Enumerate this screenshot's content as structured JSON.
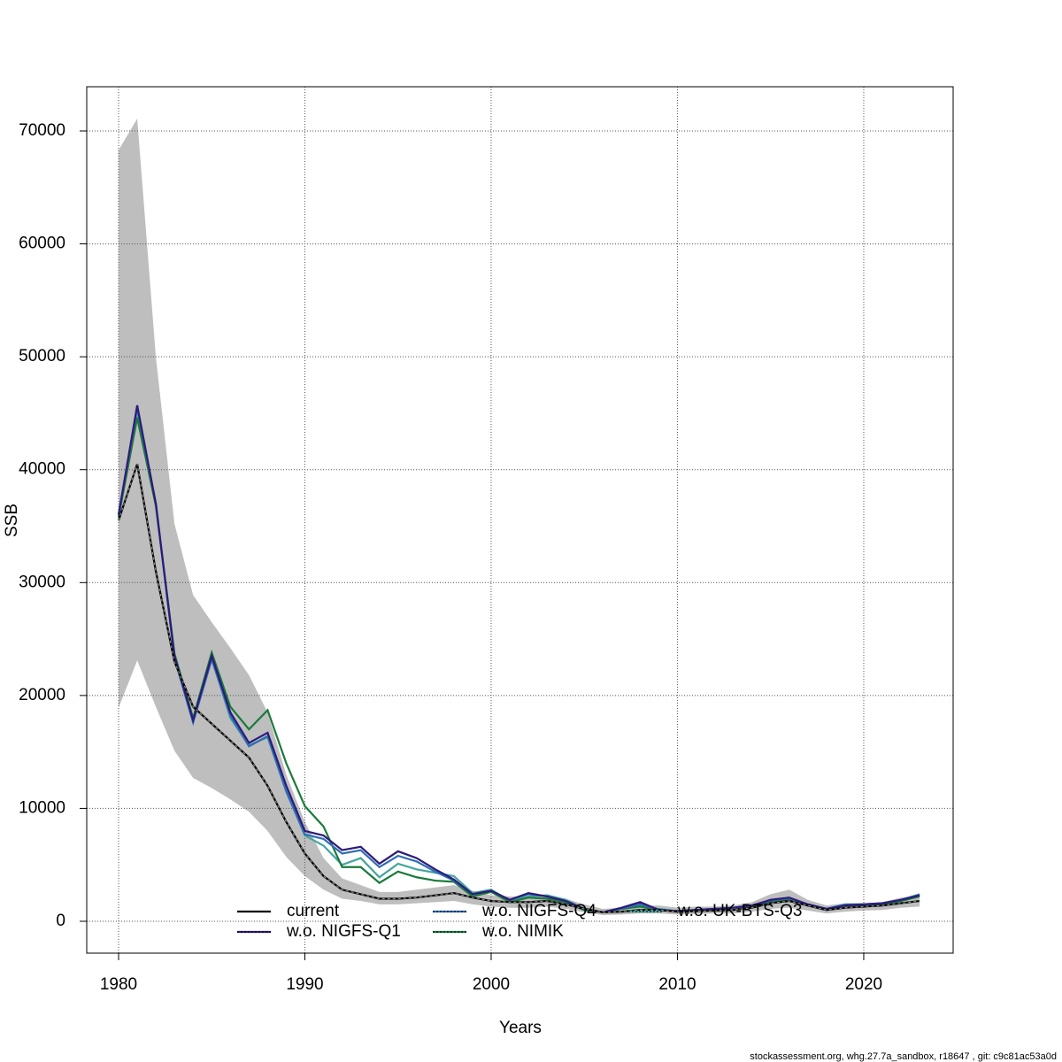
{
  "chart_data": {
    "type": "line",
    "xlabel": "Years",
    "ylabel": "SSB",
    "footer": "stockassessment.org, whg.27.7a_sandbox, r18647 , git: c9c81ac53a0d",
    "x": [
      1980,
      1981,
      1982,
      1983,
      1984,
      1985,
      1986,
      1987,
      1988,
      1989,
      1990,
      1991,
      1992,
      1993,
      1994,
      1995,
      1996,
      1997,
      1998,
      1999,
      2000,
      2001,
      2002,
      2003,
      2004,
      2005,
      2006,
      2007,
      2008,
      2009,
      2010,
      2011,
      2012,
      2013,
      2014,
      2015,
      2016,
      2017,
      2018,
      2019,
      2020,
      2021,
      2022,
      2023
    ],
    "band": {
      "color": "#bebebe",
      "upper": [
        68300,
        71100,
        50000,
        35200,
        28900,
        26500,
        24200,
        21800,
        18500,
        13000,
        8800,
        5600,
        3800,
        3200,
        2600,
        2600,
        2800,
        3000,
        3200,
        2700,
        2300,
        2200,
        2200,
        2300,
        2000,
        1500,
        1100,
        1200,
        1400,
        1400,
        1200,
        1300,
        1300,
        1400,
        1700,
        2400,
        2800,
        1900,
        1400,
        1600,
        1600,
        1700,
        2100,
        2300
      ],
      "lower": [
        18900,
        23100,
        19000,
        15100,
        12700,
        11800,
        10800,
        9700,
        8000,
        5700,
        4000,
        2800,
        2000,
        1800,
        1500,
        1500,
        1600,
        1700,
        1800,
        1500,
        1300,
        1200,
        1200,
        1300,
        1100,
        800,
        550,
        600,
        700,
        700,
        600,
        650,
        700,
        700,
        850,
        1100,
        1200,
        950,
        700,
        850,
        950,
        1000,
        1200,
        1300
      ]
    },
    "series": [
      {
        "name": "current",
        "color": "#000000",
        "values": [
          35500,
          40500,
          31000,
          23000,
          19000,
          17500,
          16000,
          14500,
          12000,
          8800,
          6000,
          4000,
          2800,
          2400,
          2000,
          2000,
          2100,
          2300,
          2500,
          2100,
          1800,
          1700,
          1700,
          1800,
          1500,
          1100,
          800,
          850,
          1000,
          1000,
          850,
          900,
          950,
          1000,
          1200,
          1600,
          1800,
          1400,
          1000,
          1200,
          1300,
          1400,
          1600,
          1800
        ]
      },
      {
        "name": "w.o. NIGFS-Q1",
        "color": "#2d1a7a",
        "values": [
          36000,
          45700,
          37000,
          23500,
          17800,
          23500,
          18500,
          15800,
          16700,
          12000,
          8000,
          7600,
          6300,
          6600,
          5100,
          6200,
          5600,
          4600,
          3700,
          2400,
          2700,
          1900,
          2500,
          2200,
          1800,
          1100,
          800,
          1200,
          1700,
          1000,
          900,
          1000,
          1100,
          1200,
          1400,
          1900,
          2100,
          1500,
          1100,
          1400,
          1500,
          1600,
          1900,
          2300
        ]
      },
      {
        "name": "w.o. NIGFS-Q4",
        "color": "#2f6db5",
        "values": [
          36000,
          45500,
          37000,
          23300,
          17600,
          23200,
          18200,
          15500,
          16400,
          11500,
          7700,
          7300,
          6000,
          6300,
          4800,
          5800,
          5300,
          4400,
          3600,
          2400,
          2700,
          1900,
          2400,
          2200,
          1800,
          1100,
          800,
          1150,
          1500,
          1050,
          900,
          1000,
          1100,
          1200,
          1400,
          1850,
          2050,
          1500,
          1100,
          1450,
          1500,
          1600,
          1900,
          2350
        ]
      },
      {
        "name": "w.o. NIMIK",
        "color": "#1a7a3a",
        "values": [
          35800,
          44600,
          36800,
          23700,
          18000,
          23800,
          19000,
          17000,
          18700,
          14000,
          10200,
          8400,
          4800,
          4800,
          3400,
          4400,
          3900,
          3600,
          3500,
          2200,
          2600,
          1700,
          2100,
          2000,
          1700,
          1000,
          800,
          1100,
          1300,
          1000,
          900,
          1000,
          1100,
          1200,
          1300,
          1700,
          1900,
          1400,
          1100,
          1400,
          1400,
          1500,
          1800,
          2200
        ]
      },
      {
        "name": "w.o. UK-BTS-Q3",
        "color": "#45a59e",
        "values": [
          36000,
          45000,
          37000,
          23500,
          17700,
          23300,
          18000,
          15600,
          16300,
          11500,
          7600,
          6700,
          5000,
          5600,
          3900,
          5100,
          4600,
          4300,
          4000,
          2500,
          2800,
          1800,
          2200,
          2300,
          1900,
          1100,
          800,
          1100,
          1400,
          1100,
          900,
          1000,
          1100,
          1200,
          1400,
          1800,
          2000,
          1500,
          1100,
          1500,
          1500,
          1600,
          1900,
          2400
        ]
      }
    ],
    "xlim": [
      1978.29,
      2024.8
    ],
    "ylim": [
      -2822,
      73920
    ],
    "xticks": [
      1980,
      1990,
      2000,
      2010,
      2020
    ],
    "yticks": [
      0,
      10000,
      20000,
      30000,
      40000,
      50000,
      60000,
      70000
    ],
    "grid": true,
    "legend": "bottom"
  }
}
